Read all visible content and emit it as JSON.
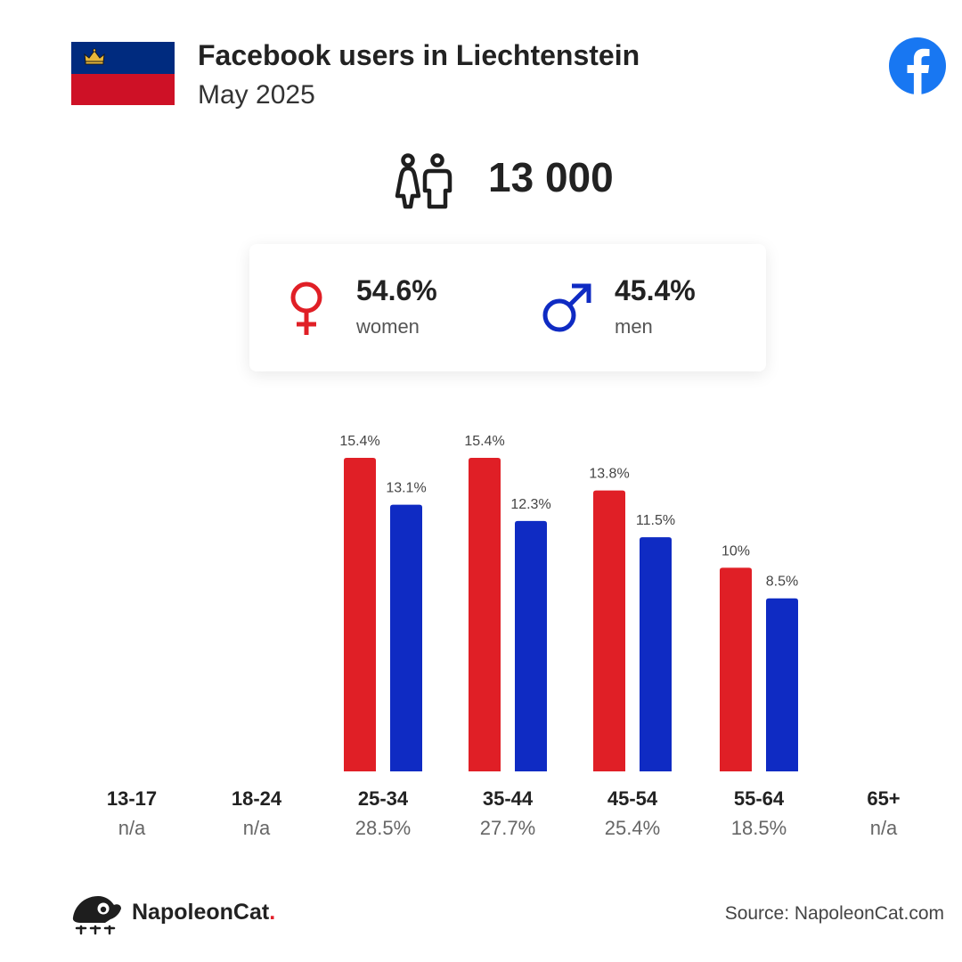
{
  "header": {
    "title": "Facebook users in Liechtenstein",
    "subtitle": "May 2025"
  },
  "total_users": "13 000",
  "gender": {
    "women_pct": "54.6%",
    "women_label": "women",
    "men_pct": "45.4%",
    "men_label": "men"
  },
  "colors": {
    "women": "#e01f26",
    "men": "#0f2bc3",
    "facebook": "#1877f2",
    "flag_blue": "#002b7f",
    "flag_red": "#ce1126"
  },
  "chart_data": {
    "type": "bar",
    "categories": [
      "13-17",
      "18-24",
      "25-34",
      "35-44",
      "45-54",
      "55-64",
      "65+"
    ],
    "category_totals": [
      "n/a",
      "n/a",
      "28.5%",
      "27.7%",
      "25.4%",
      "18.5%",
      "n/a"
    ],
    "series": [
      {
        "values": [
          null,
          null,
          15.4,
          15.4,
          13.8,
          10,
          null
        ],
        "labels": [
          "",
          "",
          "15.4%",
          "15.4%",
          "13.8%",
          "10%",
          ""
        ]
      },
      {
        "values": [
          null,
          null,
          13.1,
          12.3,
          11.5,
          8.5,
          null
        ],
        "labels": [
          "",
          "",
          "13.1%",
          "12.3%",
          "11.5%",
          "8.5%",
          ""
        ]
      }
    ],
    "ylim": [
      0,
      15.4
    ]
  },
  "footer": {
    "brand": "NapoleonCat",
    "brand_dot": ".",
    "source": "Source: NapoleonCat.com"
  }
}
